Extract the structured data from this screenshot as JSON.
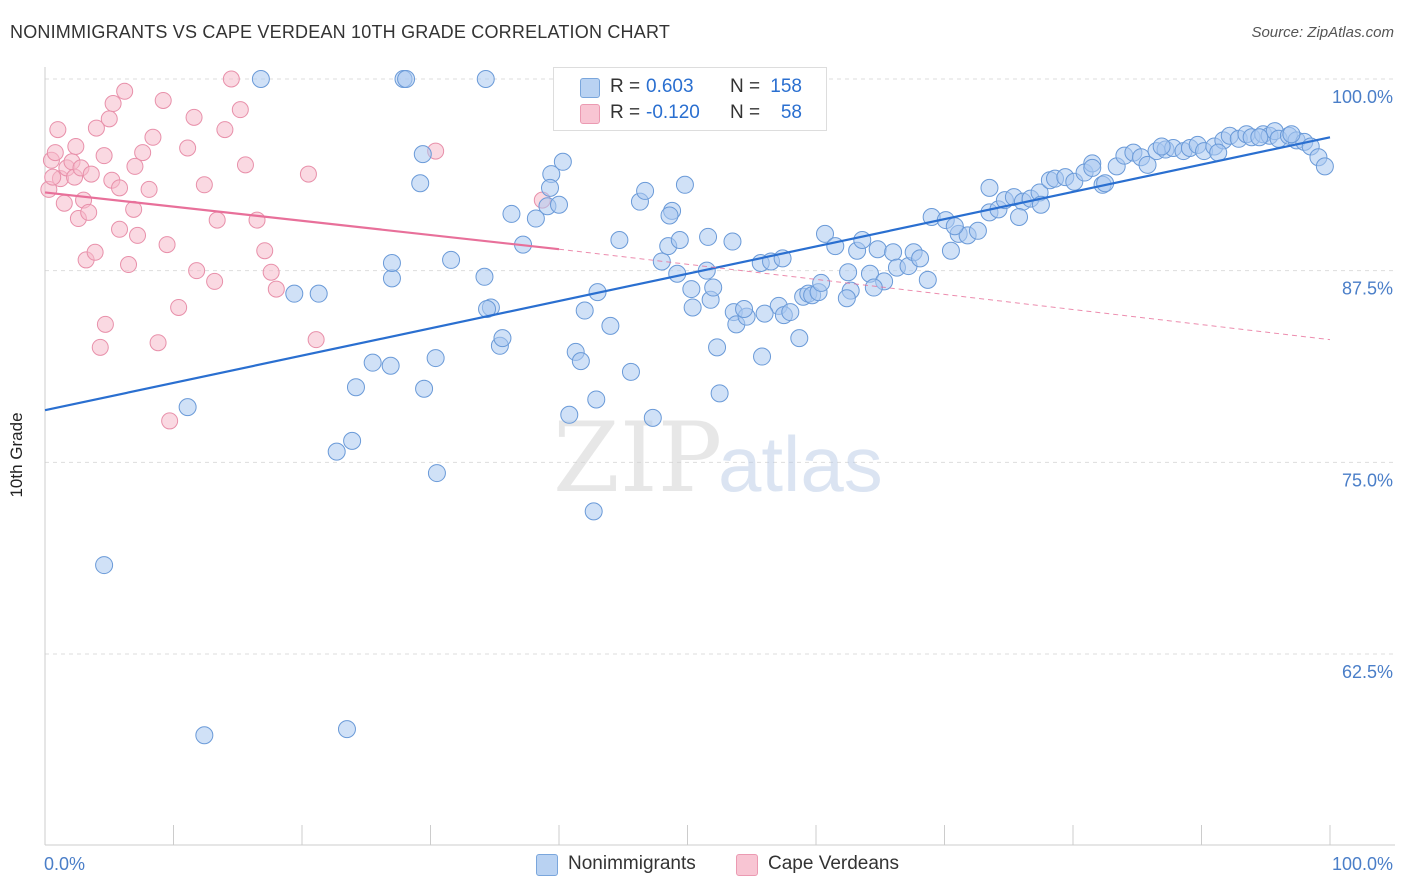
{
  "header": {
    "title": "NONIMMIGRANTS VS CAPE VERDEAN 10TH GRADE CORRELATION CHART",
    "source": "Source: ZipAtlas.com"
  },
  "watermark": {
    "zip": "ZIP",
    "atlas": "atlas"
  },
  "legend_top": {
    "rows": [
      {
        "r_label": "R =",
        "r_value": "0.603",
        "n_label": "N =",
        "n_value": "158"
      },
      {
        "r_label": "R =",
        "r_value": "-0.120",
        "n_label": "N =",
        "n_value": "58"
      }
    ]
  },
  "legend_bottom": {
    "items": [
      {
        "label": "Nonimmigrants"
      },
      {
        "label": "Cape Verdeans"
      }
    ]
  },
  "colors": {
    "blue_fill": "#aac8f0",
    "blue_stroke": "#6a9ad8",
    "blue_line": "#2a6fd0",
    "pink_fill": "#f6b9ca",
    "pink_stroke": "#e890aa",
    "pink_line": "#e8709a",
    "axis_label": "#4a7ec8",
    "grid": "#dddddd"
  },
  "chart_data": {
    "type": "scatter",
    "title": "NONIMMIGRANTS VS CAPE VERDEAN 10TH GRADE CORRELATION CHART",
    "xlabel": "",
    "ylabel": "10th Grade",
    "xlim": [
      0,
      100
    ],
    "ylim": [
      50.8,
      101
    ],
    "x_tick_labels": [
      "0.0%",
      "100.0%"
    ],
    "y_ticks": [
      100.0,
      87.5,
      75.0,
      62.5
    ],
    "y_tick_labels": [
      "100.0%",
      "87.5%",
      "75.0%",
      "62.5%"
    ],
    "grid": true,
    "series": [
      {
        "name": "Nonimmigrants",
        "r": 0.603,
        "n": 158,
        "trend": {
          "x": [
            0,
            100
          ],
          "y": [
            78.4,
            96.2
          ]
        },
        "points": [
          [
            11.1,
            78.6
          ],
          [
            4.6,
            68.3
          ],
          [
            12.4,
            57.2
          ],
          [
            23.5,
            57.6
          ],
          [
            16.8,
            100.0
          ],
          [
            27.9,
            100.0
          ],
          [
            28.1,
            100.0
          ],
          [
            34.3,
            100.0
          ],
          [
            19.4,
            86.0
          ],
          [
            21.3,
            86.0
          ],
          [
            23.9,
            76.4
          ],
          [
            22.7,
            75.7
          ],
          [
            24.2,
            79.9
          ],
          [
            25.5,
            81.5
          ],
          [
            26.9,
            81.3
          ],
          [
            27.0,
            87.0
          ],
          [
            27.0,
            88.0
          ],
          [
            29.2,
            93.2
          ],
          [
            31.6,
            88.2
          ],
          [
            29.5,
            79.8
          ],
          [
            30.4,
            81.8
          ],
          [
            30.5,
            74.3
          ],
          [
            29.4,
            95.1
          ],
          [
            34.2,
            87.1
          ],
          [
            34.7,
            85.1
          ],
          [
            35.4,
            82.6
          ],
          [
            35.6,
            83.1
          ],
          [
            34.4,
            85.0
          ],
          [
            36.3,
            91.2
          ],
          [
            37.2,
            89.2
          ],
          [
            38.2,
            90.9
          ],
          [
            39.1,
            91.7
          ],
          [
            39.4,
            93.8
          ],
          [
            39.3,
            92.9
          ],
          [
            40.0,
            91.8
          ],
          [
            40.3,
            94.6
          ],
          [
            40.8,
            78.1
          ],
          [
            41.3,
            82.2
          ],
          [
            41.7,
            81.6
          ],
          [
            42.0,
            84.9
          ],
          [
            43.0,
            86.1
          ],
          [
            42.9,
            79.1
          ],
          [
            42.7,
            71.8
          ],
          [
            44.0,
            83.9
          ],
          [
            44.7,
            89.5
          ],
          [
            45.6,
            80.9
          ],
          [
            46.3,
            92.0
          ],
          [
            46.7,
            92.7
          ],
          [
            47.3,
            77.9
          ],
          [
            48.0,
            88.1
          ],
          [
            48.5,
            89.1
          ],
          [
            48.8,
            91.4
          ],
          [
            49.4,
            89.5
          ],
          [
            49.2,
            87.3
          ],
          [
            49.8,
            93.1
          ],
          [
            50.3,
            86.3
          ],
          [
            50.4,
            85.1
          ],
          [
            51.5,
            87.5
          ],
          [
            51.6,
            89.7
          ],
          [
            51.8,
            85.6
          ],
          [
            52.3,
            82.5
          ],
          [
            52.5,
            79.5
          ],
          [
            53.6,
            84.8
          ],
          [
            53.8,
            84.0
          ],
          [
            54.6,
            84.5
          ],
          [
            54.4,
            85.0
          ],
          [
            55.7,
            88.0
          ],
          [
            55.8,
            81.9
          ],
          [
            56.5,
            88.1
          ],
          [
            57.1,
            85.2
          ],
          [
            57.5,
            84.6
          ],
          [
            58.7,
            83.1
          ],
          [
            59.0,
            85.8
          ],
          [
            59.4,
            86.0
          ],
          [
            59.7,
            85.9
          ],
          [
            60.2,
            86.1
          ],
          [
            60.7,
            89.9
          ],
          [
            61.5,
            89.1
          ],
          [
            62.7,
            86.2
          ],
          [
            62.5,
            87.4
          ],
          [
            63.2,
            88.8
          ],
          [
            63.6,
            89.5
          ],
          [
            64.2,
            87.3
          ],
          [
            64.8,
            88.9
          ],
          [
            65.3,
            86.8
          ],
          [
            66.0,
            88.7
          ],
          [
            66.3,
            87.7
          ],
          [
            67.2,
            87.8
          ],
          [
            67.6,
            88.7
          ],
          [
            68.1,
            88.3
          ],
          [
            69.0,
            91.0
          ],
          [
            70.1,
            90.8
          ],
          [
            70.5,
            88.8
          ],
          [
            71.1,
            89.9
          ],
          [
            71.8,
            89.8
          ],
          [
            72.6,
            90.1
          ],
          [
            73.5,
            91.3
          ],
          [
            74.2,
            91.5
          ],
          [
            74.7,
            92.1
          ],
          [
            75.4,
            92.3
          ],
          [
            76.1,
            92.0
          ],
          [
            76.7,
            92.2
          ],
          [
            77.4,
            92.6
          ],
          [
            78.2,
            93.4
          ],
          [
            78.6,
            93.5
          ],
          [
            79.4,
            93.6
          ],
          [
            80.1,
            93.3
          ],
          [
            80.9,
            93.9
          ],
          [
            81.5,
            94.5
          ],
          [
            82.3,
            93.1
          ],
          [
            82.5,
            93.2
          ],
          [
            83.4,
            94.3
          ],
          [
            84.0,
            95.0
          ],
          [
            84.7,
            95.2
          ],
          [
            85.3,
            94.9
          ],
          [
            85.8,
            94.4
          ],
          [
            86.5,
            95.3
          ],
          [
            87.2,
            95.4
          ],
          [
            87.8,
            95.5
          ],
          [
            88.6,
            95.3
          ],
          [
            89.1,
            95.5
          ],
          [
            89.7,
            95.7
          ],
          [
            90.2,
            95.3
          ],
          [
            91.0,
            95.6
          ],
          [
            91.7,
            96.0
          ],
          [
            92.2,
            96.3
          ],
          [
            92.9,
            96.1
          ],
          [
            93.5,
            96.4
          ],
          [
            93.9,
            96.2
          ],
          [
            94.8,
            96.4
          ],
          [
            95.3,
            96.3
          ],
          [
            95.7,
            96.6
          ],
          [
            96.0,
            96.1
          ],
          [
            96.8,
            96.3
          ],
          [
            97.4,
            96.0
          ],
          [
            98.0,
            95.9
          ],
          [
            98.5,
            95.6
          ],
          [
            99.1,
            94.9
          ],
          [
            99.6,
            94.3
          ],
          [
            77.5,
            91.8
          ],
          [
            52.0,
            86.4
          ],
          [
            56.0,
            84.7
          ],
          [
            58.0,
            84.8
          ],
          [
            62.4,
            85.7
          ],
          [
            64.5,
            86.4
          ],
          [
            70.8,
            90.4
          ],
          [
            73.5,
            92.9
          ],
          [
            81.5,
            94.2
          ],
          [
            86.9,
            95.6
          ],
          [
            91.3,
            95.2
          ],
          [
            94.5,
            96.2
          ],
          [
            97.0,
            96.4
          ],
          [
            48.6,
            91.1
          ],
          [
            53.5,
            89.4
          ],
          [
            57.4,
            88.3
          ],
          [
            60.4,
            86.7
          ],
          [
            68.7,
            86.9
          ],
          [
            75.8,
            91.0
          ]
        ]
      },
      {
        "name": "Cape Verdeans",
        "r": -0.12,
        "n": 58,
        "trend": {
          "x": [
            0,
            40
          ],
          "y": [
            92.6,
            88.9
          ],
          "dashed_to": {
            "x": 100,
            "y": 83.0
          }
        },
        "points": [
          [
            0.5,
            94.7
          ],
          [
            0.8,
            95.2
          ],
          [
            1.0,
            96.7
          ],
          [
            1.2,
            93.5
          ],
          [
            1.5,
            91.9
          ],
          [
            1.7,
            94.2
          ],
          [
            2.1,
            94.6
          ],
          [
            2.3,
            93.6
          ],
          [
            2.8,
            94.2
          ],
          [
            2.6,
            90.9
          ],
          [
            3.0,
            92.1
          ],
          [
            3.2,
            88.2
          ],
          [
            3.4,
            91.3
          ],
          [
            3.6,
            93.8
          ],
          [
            3.9,
            88.7
          ],
          [
            4.0,
            96.8
          ],
          [
            4.3,
            82.5
          ],
          [
            4.7,
            84.0
          ],
          [
            5.0,
            97.4
          ],
          [
            5.3,
            98.4
          ],
          [
            4.6,
            95.0
          ],
          [
            5.2,
            93.4
          ],
          [
            5.8,
            92.9
          ],
          [
            5.8,
            90.2
          ],
          [
            6.2,
            99.2
          ],
          [
            6.5,
            87.9
          ],
          [
            6.9,
            91.5
          ],
          [
            7.2,
            89.8
          ],
          [
            7.6,
            95.2
          ],
          [
            8.1,
            92.8
          ],
          [
            8.4,
            96.2
          ],
          [
            8.8,
            82.8
          ],
          [
            9.2,
            98.6
          ],
          [
            9.5,
            89.2
          ],
          [
            9.7,
            77.7
          ],
          [
            10.4,
            85.1
          ],
          [
            11.1,
            95.5
          ],
          [
            11.6,
            97.5
          ],
          [
            11.8,
            87.5
          ],
          [
            12.4,
            93.1
          ],
          [
            13.2,
            86.8
          ],
          [
            13.4,
            90.8
          ],
          [
            14.0,
            96.7
          ],
          [
            14.5,
            100.0
          ],
          [
            15.2,
            98.0
          ],
          [
            15.6,
            94.4
          ],
          [
            16.5,
            90.8
          ],
          [
            17.1,
            88.8
          ],
          [
            17.6,
            87.4
          ],
          [
            18.0,
            86.3
          ],
          [
            20.5,
            93.8
          ],
          [
            21.1,
            83.0
          ],
          [
            30.4,
            95.3
          ],
          [
            38.7,
            92.1
          ],
          [
            0.3,
            92.8
          ],
          [
            0.6,
            93.6
          ],
          [
            2.4,
            95.6
          ],
          [
            7.0,
            94.3
          ]
        ]
      }
    ]
  }
}
